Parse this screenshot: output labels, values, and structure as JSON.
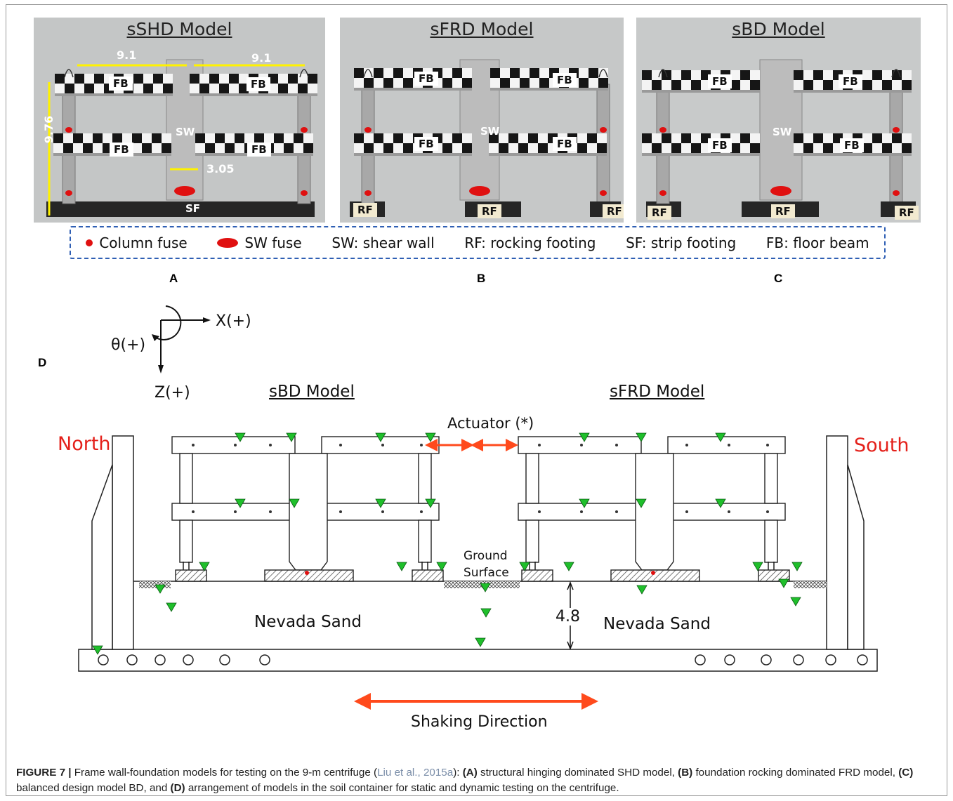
{
  "panels": {
    "a": {
      "title": "sSHD Model",
      "letter": "A",
      "labels": {
        "fb": "FB",
        "sw": "SW",
        "sf": "SF"
      },
      "dims": {
        "top_left": "9.1",
        "top_right": "9.1",
        "height": "9.76",
        "wall": "3.05"
      }
    },
    "b": {
      "title": "sFRD Model",
      "letter": "B",
      "labels": {
        "fb": "FB",
        "sw": "SW",
        "rf": "RF"
      }
    },
    "c": {
      "title": "sBD Model",
      "letter": "C",
      "labels": {
        "fb": "FB",
        "sw": "SW",
        "rf": "RF"
      }
    }
  },
  "legend": {
    "column_fuse": "Column fuse",
    "sw_fuse": "SW fuse",
    "sw": "SW: shear wall",
    "rf": "RF: rocking footing",
    "sf": "SF: strip footing",
    "fb": "FB: floor beam"
  },
  "diagram": {
    "letter": "D",
    "axis_x": "X(+)",
    "axis_z": "Z(+)",
    "axis_theta": "θ(+)",
    "left_model": "sBD Model",
    "right_model": "sFRD Model",
    "actuator": "Actuator (*)",
    "north": "North",
    "south": "South",
    "ground_line1": "Ground",
    "ground_line2": "Surface",
    "sand_left": "Nevada Sand",
    "sand_right": "Nevada Sand",
    "depth": "4.8",
    "shaking": "Shaking Direction",
    "colors": {
      "label_red": "#e4201a",
      "marker_green": "#1fbf2b",
      "arrow_red": "#ff4a1c"
    }
  },
  "caption": {
    "figure": "FIGURE 7 |",
    "text1": " Frame wall-foundation models for testing on the 9-m centrifuge (",
    "ref": "Liu et al., 2015a",
    "text2": "): ",
    "a_tag": "(A)",
    "a_text": " structural hinging dominated SHD model, ",
    "b_tag": "(B)",
    "b_text": " foundation rocking dominated FRD model, ",
    "c_tag": "(C)",
    "c_text": " balanced design model BD, and ",
    "d_tag": "(D)",
    "d_text": " arrangement of models in the soil container for static and dynamic testing on the centrifuge."
  }
}
